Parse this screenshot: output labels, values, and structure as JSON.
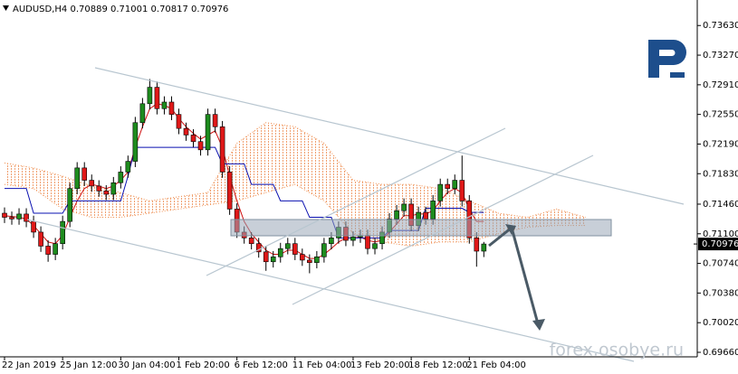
{
  "chart_data": {
    "type": "candlestick",
    "title": "AUDUSD,H4  0.70889 0.71001 0.70817 0.70976",
    "watermark": "forex.osobye.ru",
    "categories": [
      "22 Jan 2019",
      null,
      null,
      null,
      null,
      null,
      null,
      null,
      "25 Jan 12:00",
      null,
      null,
      null,
      null,
      null,
      null,
      null,
      "30 Jan 04:00",
      null,
      null,
      null,
      null,
      null,
      null,
      null,
      "1 Feb 20:00",
      null,
      null,
      null,
      null,
      null,
      null,
      null,
      "6 Feb 12:00",
      null,
      null,
      null,
      null,
      null,
      null,
      null,
      "11 Feb 04:00",
      null,
      null,
      null,
      null,
      null,
      null,
      null,
      "13 Feb 20:00",
      null,
      null,
      null,
      null,
      null,
      null,
      null,
      "18 Feb 12:00",
      null,
      null,
      null,
      null,
      null,
      null,
      null,
      "21 Feb 04:00",
      null,
      null
    ],
    "open": [
      0.7135,
      0.713,
      0.7128,
      0.7134,
      0.7125,
      0.7112,
      0.7095,
      0.7085,
      0.7098,
      0.7125,
      0.7165,
      0.719,
      0.7175,
      0.7168,
      0.7162,
      0.7158,
      0.7172,
      0.7185,
      0.7198,
      0.7245,
      0.7268,
      0.7288,
      0.7262,
      0.727,
      0.7255,
      0.7238,
      0.723,
      0.7222,
      0.7212,
      0.7255,
      0.724,
      0.7185,
      0.714,
      0.7112,
      0.7105,
      0.7098,
      0.7088,
      0.7076,
      0.7082,
      0.7092,
      0.7098,
      0.7085,
      0.7078,
      0.7075,
      0.7082,
      0.7098,
      0.7105,
      0.7118,
      0.7102,
      0.7106,
      0.7108,
      0.7092,
      0.7098,
      0.7112,
      0.7128,
      0.7138,
      0.7146,
      0.712,
      0.7136,
      0.7128,
      0.715,
      0.717,
      0.7165,
      0.7175,
      0.715,
      0.7105,
      0.70889
    ],
    "high": [
      0.7142,
      0.7137,
      0.7141,
      0.7141,
      0.7132,
      0.7119,
      0.7102,
      0.7105,
      0.7132,
      0.7172,
      0.7197,
      0.7197,
      0.7182,
      0.7175,
      0.7169,
      0.7179,
      0.7192,
      0.7205,
      0.7252,
      0.7275,
      0.7298,
      0.7295,
      0.7277,
      0.7277,
      0.7262,
      0.7245,
      0.7237,
      0.7229,
      0.7262,
      0.7262,
      0.7247,
      0.7192,
      0.7147,
      0.7119,
      0.7112,
      0.7105,
      0.7095,
      0.7089,
      0.7099,
      0.7105,
      0.7105,
      0.7092,
      0.7085,
      0.7089,
      0.7105,
      0.7112,
      0.7125,
      0.7125,
      0.7113,
      0.7115,
      0.7115,
      0.7105,
      0.7119,
      0.7135,
      0.7145,
      0.7153,
      0.7153,
      0.7143,
      0.7143,
      0.7157,
      0.7177,
      0.7177,
      0.7182,
      0.7205,
      0.7157,
      0.7112,
      0.71001
    ],
    "low": [
      0.7123,
      0.7121,
      0.7121,
      0.7118,
      0.7105,
      0.7088,
      0.7076,
      0.7078,
      0.7091,
      0.7118,
      0.7158,
      0.7168,
      0.7161,
      0.7155,
      0.7151,
      0.7151,
      0.7165,
      0.7178,
      0.7191,
      0.7238,
      0.7261,
      0.7255,
      0.7255,
      0.7248,
      0.7231,
      0.7223,
      0.7215,
      0.7205,
      0.7205,
      0.7233,
      0.7178,
      0.7133,
      0.7105,
      0.7098,
      0.7091,
      0.7081,
      0.7065,
      0.7069,
      0.7075,
      0.7085,
      0.7078,
      0.7071,
      0.7062,
      0.7068,
      0.7075,
      0.7091,
      0.7098,
      0.7095,
      0.7095,
      0.7099,
      0.7085,
      0.7085,
      0.7091,
      0.7105,
      0.7121,
      0.7131,
      0.7113,
      0.7113,
      0.7121,
      0.7121,
      0.7143,
      0.7158,
      0.7158,
      0.7143,
      0.7098,
      0.707,
      0.70817
    ],
    "close": [
      0.713,
      0.7128,
      0.7134,
      0.7125,
      0.7112,
      0.7095,
      0.7085,
      0.7098,
      0.7125,
      0.7165,
      0.719,
      0.7175,
      0.7168,
      0.7162,
      0.7158,
      0.7172,
      0.7185,
      0.7198,
      0.7245,
      0.7268,
      0.7288,
      0.7262,
      0.727,
      0.7255,
      0.7238,
      0.723,
      0.7222,
      0.7212,
      0.7255,
      0.724,
      0.7185,
      0.714,
      0.7112,
      0.7105,
      0.7098,
      0.7088,
      0.7076,
      0.7082,
      0.7092,
      0.7098,
      0.7085,
      0.7078,
      0.7075,
      0.7082,
      0.7098,
      0.7105,
      0.7118,
      0.7102,
      0.7106,
      0.7108,
      0.7092,
      0.7098,
      0.7112,
      0.7128,
      0.7138,
      0.7146,
      0.712,
      0.7136,
      0.7128,
      0.715,
      0.717,
      0.7165,
      0.7175,
      0.715,
      0.7105,
      0.70889,
      0.70976
    ],
    "up_color": "#1e8c1e",
    "down_color": "#e01818",
    "series": [
      {
        "color": "#d01010",
        "values": [
          0.7132,
          0.7131,
          0.713,
          0.7128,
          0.712,
          0.711,
          0.71,
          0.7098,
          0.7108,
          0.713,
          0.715,
          0.7165,
          0.717,
          0.7168,
          0.7165,
          0.7168,
          0.7175,
          0.7185,
          0.7215,
          0.724,
          0.7262,
          0.7268,
          0.7266,
          0.7262,
          0.725,
          0.724,
          0.7232,
          0.7225,
          0.723,
          0.7235,
          0.7215,
          0.718,
          0.715,
          0.7125,
          0.711,
          0.71,
          0.709,
          0.7085,
          0.7085,
          0.709,
          0.709,
          0.7085,
          0.708,
          0.708,
          0.7085,
          0.7092,
          0.71,
          0.7105,
          0.7105,
          0.7106,
          0.7102,
          0.71,
          0.7102,
          0.7112,
          0.7122,
          0.7132,
          0.7132,
          0.7134,
          0.7134,
          0.7138,
          0.715,
          0.716,
          0.7165,
          0.716,
          0.714,
          0.7125,
          0.7125
        ]
      },
      {
        "color": "#0a10b0",
        "values": [
          0.7165,
          0.7165,
          0.7165,
          0.7165,
          0.7135,
          0.7135,
          0.7135,
          0.7135,
          0.7135,
          0.715,
          0.715,
          0.715,
          0.715,
          0.715,
          0.715,
          0.715,
          0.715,
          0.718,
          0.7215,
          0.7215,
          0.7215,
          0.7215,
          0.7215,
          0.7215,
          0.7215,
          0.7215,
          0.7215,
          0.7215,
          0.7215,
          0.7215,
          0.7195,
          0.7195,
          0.7195,
          0.7195,
          0.717,
          0.717,
          0.717,
          0.717,
          0.715,
          0.715,
          0.715,
          0.715,
          0.713,
          0.713,
          0.713,
          0.713,
          0.7105,
          0.7105,
          0.7105,
          0.7105,
          0.7105,
          0.7105,
          0.7105,
          0.7114,
          0.7114,
          0.7114,
          0.7114,
          0.7114,
          0.7141,
          0.7141,
          0.7141,
          0.7141,
          0.7141,
          0.7141,
          0.7136,
          0.7136,
          0.7136
        ]
      }
    ],
    "cloud": {
      "color": "#f09050",
      "x": [
        0,
        4,
        8,
        12,
        16,
        20,
        24,
        28,
        32,
        36,
        40,
        44,
        48,
        52,
        56,
        60,
        64,
        68,
        72,
        76,
        80
      ],
      "span_a": [
        0.7196,
        0.719,
        0.718,
        0.7168,
        0.716,
        0.715,
        0.7155,
        0.716,
        0.722,
        0.7245,
        0.724,
        0.722,
        0.7175,
        0.717,
        0.717,
        0.7165,
        0.715,
        0.7135,
        0.713,
        0.714,
        0.713
      ],
      "span_b": [
        0.717,
        0.7165,
        0.714,
        0.713,
        0.713,
        0.7135,
        0.714,
        0.7145,
        0.715,
        0.716,
        0.717,
        0.715,
        0.711,
        0.71,
        0.7095,
        0.71,
        0.71,
        0.711,
        0.7118,
        0.712,
        0.712
      ]
    },
    "last_price": 0.70976,
    "ylim": [
      0.69605,
      0.7394
    ],
    "yticks": [
      {
        "value": 0.7363,
        "label": "0.73630"
      },
      {
        "value": 0.7327,
        "label": "0.73270"
      },
      {
        "value": 0.7291,
        "label": "0.72910"
      },
      {
        "value": 0.7255,
        "label": "0.72550"
      },
      {
        "value": 0.7219,
        "label": "0.72190"
      },
      {
        "value": 0.7183,
        "label": "0.71830"
      },
      {
        "value": 0.7146,
        "label": "0.71460"
      },
      {
        "value": 0.711,
        "label": "0.71100"
      },
      {
        "value": 0.7074,
        "label": "0.70740"
      },
      {
        "value": 0.7038,
        "label": "0.70380"
      },
      {
        "value": 0.7002,
        "label": "0.70020"
      },
      {
        "value": 0.6966,
        "label": "0.69660"
      }
    ],
    "grid": false
  }
}
